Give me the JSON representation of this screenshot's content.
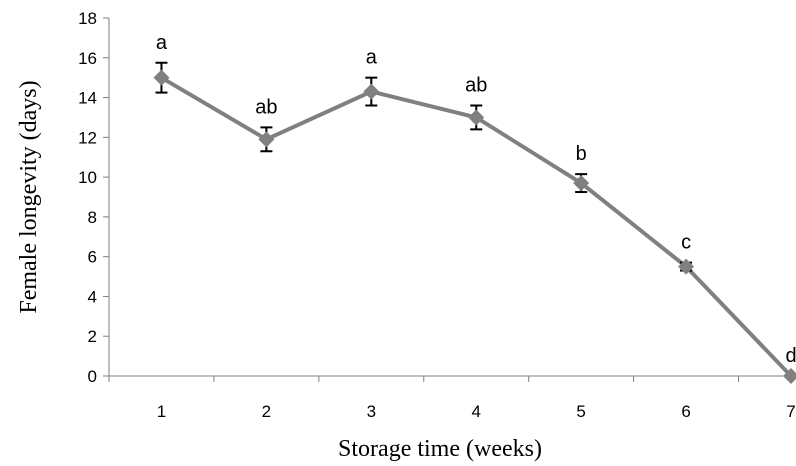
{
  "chart_data": {
    "type": "line",
    "xlabel": "Storage time (weeks)",
    "ylabel": "Female longevity (days)",
    "ylim": [
      0,
      18
    ],
    "yticks": [
      0,
      2,
      4,
      6,
      8,
      10,
      12,
      14,
      16,
      18
    ],
    "categories": [
      "1",
      "2",
      "3",
      "4",
      "5",
      "6",
      "7"
    ],
    "series": [
      {
        "values": [
          15.0,
          11.9,
          14.3,
          13.0,
          9.7,
          5.5,
          0.0
        ],
        "error": [
          0.75,
          0.6,
          0.7,
          0.6,
          0.45,
          0.2,
          0.0
        ],
        "marker": "diamond",
        "color": "#808080"
      }
    ],
    "annotations": [
      "a",
      "ab",
      "a",
      "ab",
      "b",
      "c",
      "d"
    ],
    "grid": false,
    "legend": "none"
  }
}
